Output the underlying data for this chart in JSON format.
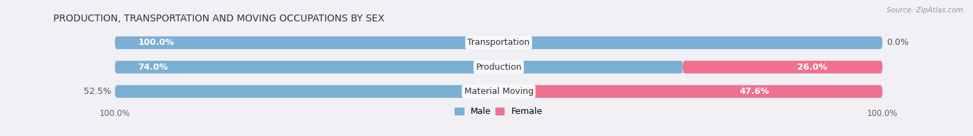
{
  "title": "PRODUCTION, TRANSPORTATION AND MOVING OCCUPATIONS BY SEX",
  "source": "Source: ZipAtlas.com",
  "categories": [
    "Transportation",
    "Production",
    "Material Moving"
  ],
  "male_pct": [
    100.0,
    74.0,
    52.5
  ],
  "female_pct": [
    0.0,
    26.0,
    47.6
  ],
  "male_color": "#7bafd4",
  "female_color": "#f07090",
  "bar_bg_color": "#e2e2ee",
  "label_inside_male": [
    true,
    true,
    false
  ],
  "label_inside_female": [
    false,
    true,
    true
  ],
  "male_label_values": [
    "100.0%",
    "74.0%",
    "52.5%"
  ],
  "female_label_values": [
    "0.0%",
    "26.0%",
    "47.6%"
  ],
  "title_fontsize": 10,
  "label_fontsize": 9,
  "tick_fontsize": 8.5,
  "figsize": [
    14.06,
    1.97
  ],
  "dpi": 100,
  "bar_height": 0.52,
  "bg_color": "#f0f0f5"
}
